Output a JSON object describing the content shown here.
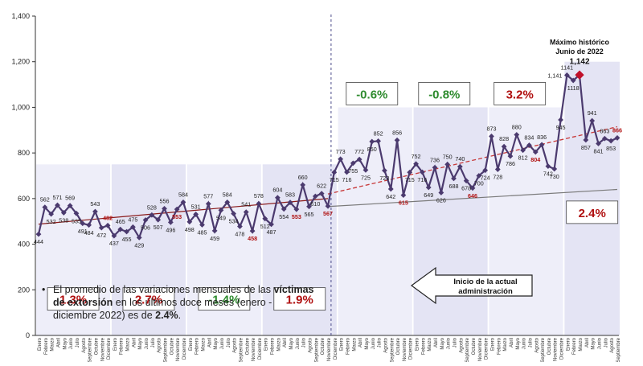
{
  "chart_data": {
    "type": "line",
    "title": "",
    "ylim": [
      0,
      1400
    ],
    "yticks": [
      "0",
      "200",
      "400",
      "600",
      "800",
      "1,000",
      "1,200",
      "1,400"
    ],
    "month_labels": [
      "Enero",
      "Febrero",
      "Marzo",
      "Abril",
      "Mayo",
      "Junio",
      "Julio",
      "Agosto",
      "Septiembre",
      "Octubre",
      "Noviembre",
      "Diciembre"
    ],
    "series": [
      {
        "name": "Víctimas de extorsión",
        "values": [
          444,
          562,
          532,
          571,
          538,
          569,
          535,
          491,
          484,
          543,
          472,
          482,
          437,
          465,
          455,
          475,
          429,
          506,
          528,
          507,
          556,
          496,
          553,
          584,
          498,
          531,
          485,
          577,
          459,
          549,
          584,
          534,
          478,
          541,
          458,
          578,
          512,
          487,
          604,
          554,
          583,
          553,
          660,
          565,
          610,
          622,
          567,
          715,
          773,
          716,
          755,
          772,
          725,
          850,
          852,
          723,
          642,
          856,
          615,
          715,
          752,
          716,
          649,
          736,
          626,
          750,
          688,
          740,
          678,
          646,
          700,
          724,
          873,
          728,
          828,
          786,
          880,
          812,
          834,
          804,
          836,
          742,
          730,
          945,
          1141,
          1118,
          1142,
          857,
          941,
          841,
          863,
          853,
          866
        ]
      }
    ],
    "label_colors": {
      "default": "#222222",
      "highlight": "#b01010"
    },
    "highlight_values": [
      482,
      553,
      458,
      567,
      615,
      646,
      804,
      866
    ],
    "segments": [
      {
        "label": "1.3%",
        "color": "#b01010"
      },
      {
        "label": "2.7%",
        "color": "#b01010"
      },
      {
        "label": "-1.4%",
        "color": "#2e8b2e"
      },
      {
        "label": "1.9%",
        "color": "#b01010"
      },
      {
        "label": "-0.6%",
        "color": "#2e8b2e"
      },
      {
        "label": "-0.8%",
        "color": "#2e8b2e"
      },
      {
        "label": "3.2%",
        "color": "#b01010"
      },
      {
        "label": "2.4%",
        "color": "#b01010"
      }
    ],
    "peak_annotation": {
      "line1": "Máximo histórico",
      "line2": "Junio de 2022",
      "value": "1,142"
    },
    "arrow_label": {
      "line1": "Inicio de la actual",
      "line2": "administración"
    }
  },
  "note": {
    "part1": "El promedio de las variaciones mensuales de las",
    "bold1": "víctimas de extorsión",
    "part2": " en los últimos doce meses (enero - diciembre 2022) es de ",
    "bold2": "2.4%",
    "part3": "."
  },
  "colors": {
    "line": "#4b3a6e",
    "marker": "#4b3a6e",
    "trend_old": "#8a1a1a",
    "trend_new": "#c83a3a",
    "trend_gray": "#7a7a7a",
    "panel": "#e9e9f7",
    "peak": "#c0102a"
  }
}
